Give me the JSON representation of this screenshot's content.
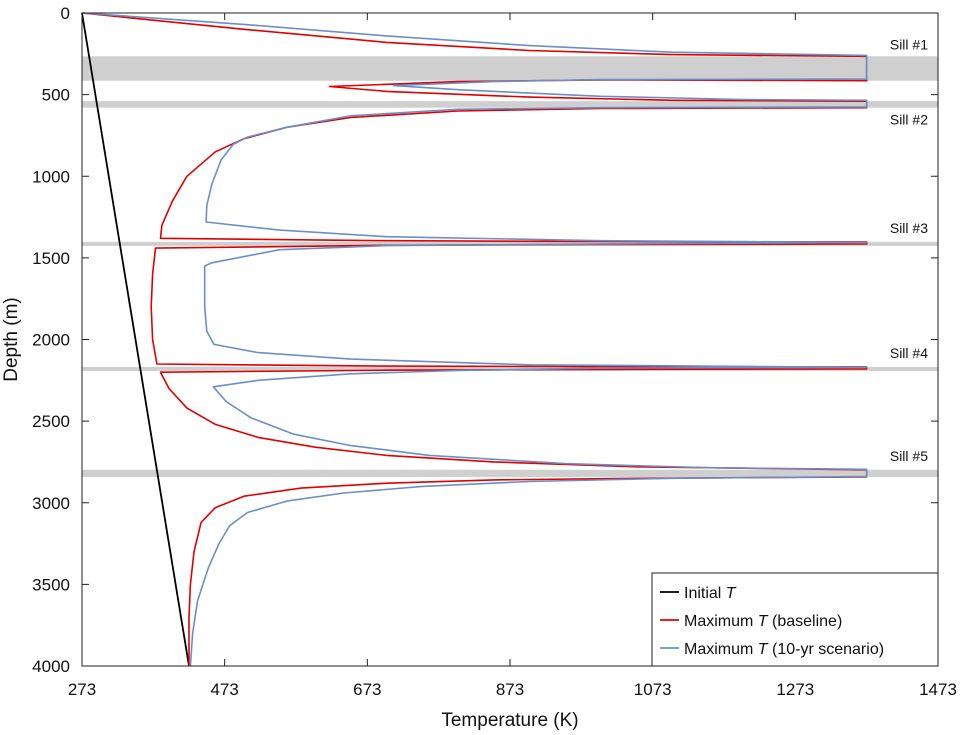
{
  "chart_data": {
    "type": "line",
    "xlabel": "Temperature (K)",
    "ylabel": "Depth (m)",
    "xlim": [
      273,
      1473
    ],
    "ylim": [
      0,
      4000
    ],
    "y_inverted": true,
    "xticks": [
      273,
      473,
      673,
      873,
      1073,
      1273,
      1473
    ],
    "yticks": [
      0,
      500,
      1000,
      1500,
      2000,
      2500,
      3000,
      3500,
      4000
    ],
    "grid": false,
    "legend_position": "bottom-right",
    "sills": [
      {
        "label": "Sill #1",
        "top": 265,
        "bottom": 415
      },
      {
        "label": "Sill #2",
        "top": 540,
        "bottom": 580
      },
      {
        "label": "Sill #3",
        "top": 1402,
        "bottom": 1415
      },
      {
        "label": "Sill #4",
        "top": 2168,
        "bottom": 2180
      },
      {
        "label": "Sill #5",
        "top": 2798,
        "bottom": 2842
      }
    ],
    "legend": [
      {
        "prefix": "Initial ",
        "italic": "T",
        "suffix": "",
        "color": "#000000"
      },
      {
        "prefix": "Maximum ",
        "italic": "T",
        "suffix": " (baseline)",
        "color": "#e00000"
      },
      {
        "prefix": "Maximum ",
        "italic": "T",
        "suffix": " (10-yr scenario)",
        "color": "#6a8fc8"
      }
    ],
    "series": [
      {
        "name": "Initial T",
        "color": "#000000",
        "points": [
          [
            273,
            0
          ],
          [
            423,
            4000
          ]
        ]
      },
      {
        "name": "Maximum T (baseline)",
        "color": "#e00000",
        "points": [
          [
            273,
            0
          ],
          [
            500,
            100
          ],
          [
            700,
            180
          ],
          [
            900,
            230
          ],
          [
            1100,
            255
          ],
          [
            1373,
            265
          ],
          [
            1373,
            415
          ],
          [
            1000,
            410
          ],
          [
            800,
            420
          ],
          [
            620,
            450
          ],
          [
            700,
            480
          ],
          [
            900,
            515
          ],
          [
            1100,
            535
          ],
          [
            1373,
            540
          ],
          [
            1373,
            580
          ],
          [
            1000,
            585
          ],
          [
            800,
            600
          ],
          [
            650,
            640
          ],
          [
            560,
            700
          ],
          [
            500,
            770
          ],
          [
            460,
            850
          ],
          [
            420,
            1000
          ],
          [
            400,
            1150
          ],
          [
            385,
            1300
          ],
          [
            383,
            1380
          ],
          [
            700,
            1395
          ],
          [
            1000,
            1400
          ],
          [
            1373,
            1402
          ],
          [
            1373,
            1415
          ],
          [
            1000,
            1418
          ],
          [
            700,
            1423
          ],
          [
            376,
            1440
          ],
          [
            372,
            1600
          ],
          [
            370,
            1800
          ],
          [
            372,
            2000
          ],
          [
            378,
            2150
          ],
          [
            700,
            2163
          ],
          [
            1000,
            2166
          ],
          [
            1373,
            2168
          ],
          [
            1373,
            2180
          ],
          [
            1000,
            2183
          ],
          [
            700,
            2188
          ],
          [
            383,
            2200
          ],
          [
            395,
            2300
          ],
          [
            420,
            2420
          ],
          [
            460,
            2520
          ],
          [
            520,
            2600
          ],
          [
            600,
            2660
          ],
          [
            700,
            2710
          ],
          [
            850,
            2750
          ],
          [
            1050,
            2780
          ],
          [
            1373,
            2798
          ],
          [
            1373,
            2842
          ],
          [
            1050,
            2850
          ],
          [
            850,
            2860
          ],
          [
            700,
            2880
          ],
          [
            580,
            2910
          ],
          [
            500,
            2960
          ],
          [
            460,
            3030
          ],
          [
            440,
            3120
          ],
          [
            430,
            3300
          ],
          [
            425,
            3500
          ],
          [
            423,
            3700
          ],
          [
            423,
            4000
          ]
        ]
      },
      {
        "name": "Maximum T (10-yr scenario)",
        "color": "#6a8fc8",
        "points": [
          [
            273,
            0
          ],
          [
            500,
            70
          ],
          [
            700,
            140
          ],
          [
            900,
            200
          ],
          [
            1100,
            240
          ],
          [
            1373,
            260
          ],
          [
            1373,
            405
          ],
          [
            1000,
            408
          ],
          [
            850,
            420
          ],
          [
            710,
            445
          ],
          [
            800,
            470
          ],
          [
            1000,
            510
          ],
          [
            1200,
            530
          ],
          [
            1373,
            535
          ],
          [
            1373,
            575
          ],
          [
            1000,
            580
          ],
          [
            800,
            590
          ],
          [
            650,
            630
          ],
          [
            560,
            700
          ],
          [
            505,
            760
          ],
          [
            485,
            805
          ],
          [
            468,
            900
          ],
          [
            455,
            1050
          ],
          [
            448,
            1180
          ],
          [
            447,
            1280
          ],
          [
            550,
            1330
          ],
          [
            700,
            1370
          ],
          [
            1000,
            1395
          ],
          [
            1373,
            1405
          ],
          [
            1000,
            1415
          ],
          [
            700,
            1425
          ],
          [
            550,
            1450
          ],
          [
            455,
            1530
          ],
          [
            445,
            1550
          ],
          [
            445,
            1800
          ],
          [
            448,
            1950
          ],
          [
            458,
            2030
          ],
          [
            520,
            2080
          ],
          [
            650,
            2120
          ],
          [
            900,
            2155
          ],
          [
            1373,
            2170
          ],
          [
            1000,
            2175
          ],
          [
            800,
            2190
          ],
          [
            650,
            2210
          ],
          [
            520,
            2250
          ],
          [
            457,
            2290
          ],
          [
            475,
            2380
          ],
          [
            510,
            2480
          ],
          [
            570,
            2580
          ],
          [
            650,
            2650
          ],
          [
            760,
            2710
          ],
          [
            950,
            2760
          ],
          [
            1150,
            2785
          ],
          [
            1373,
            2795
          ],
          [
            1373,
            2840
          ],
          [
            1100,
            2850
          ],
          [
            900,
            2870
          ],
          [
            750,
            2900
          ],
          [
            640,
            2940
          ],
          [
            560,
            2990
          ],
          [
            505,
            3060
          ],
          [
            480,
            3140
          ],
          [
            465,
            3250
          ],
          [
            450,
            3400
          ],
          [
            435,
            3600
          ],
          [
            428,
            3800
          ],
          [
            425,
            4000
          ]
        ]
      }
    ]
  }
}
